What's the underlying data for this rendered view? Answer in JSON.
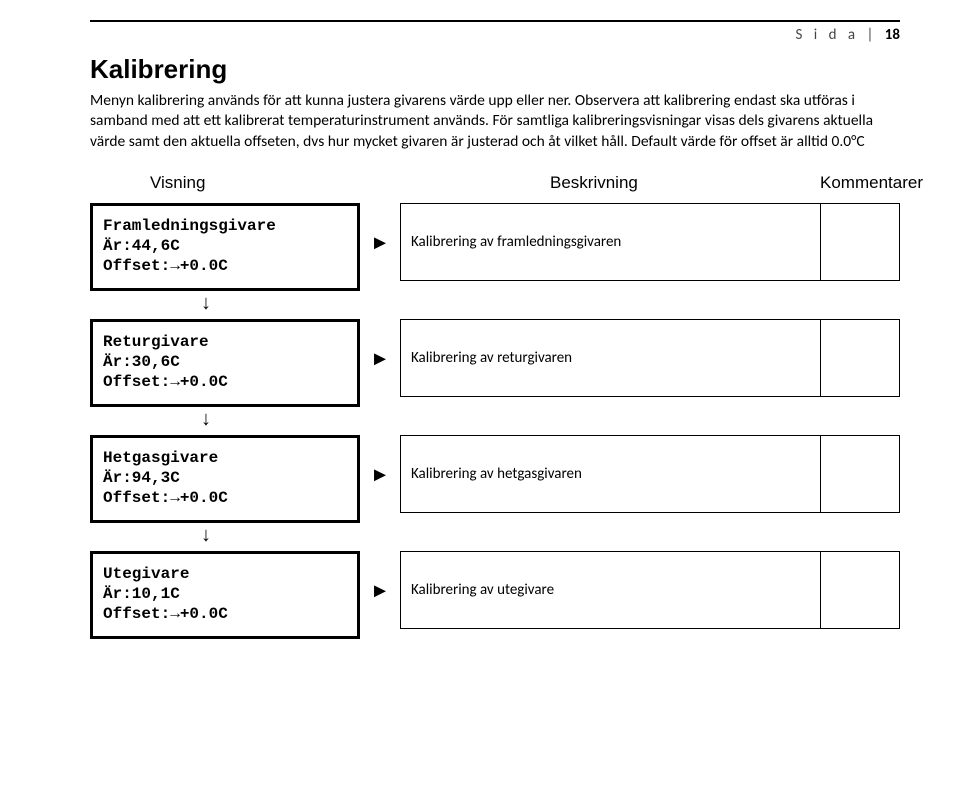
{
  "page_header": {
    "prefix": "S i d a  | ",
    "number": "18"
  },
  "title": "Kalibrering",
  "intro": "Menyn kalibrering används för att kunna justera givarens värde upp eller ner. Observera att kalibrering endast ska utföras i samband med att ett kalibrerat temperaturinstrument används. För samtliga kalibreringsvisningar visas dels givarens aktuella värde samt den aktuella offseten, dvs hur mycket givaren är justerad och åt vilket håll. Default värde för offset är alltid 0.0°C",
  "columns": {
    "c1": "Visning",
    "c3": "Beskrivning",
    "c4": "Kommentarer"
  },
  "arrows": {
    "right": "►",
    "down": "↓"
  },
  "rows": [
    {
      "line1": "Framledningsgivare",
      "line2": "Är:44,6C",
      "line3": "Offset:→+0.0C",
      "desc": "Kalibrering av framledningsgivaren"
    },
    {
      "line1": "Returgivare",
      "line2": "Är:30,6C",
      "line3": "Offset:→+0.0C",
      "desc": "Kalibrering av returgivaren"
    },
    {
      "line1": "Hetgasgivare",
      "line2": "Är:94,3C",
      "line3": "Offset:→+0.0C",
      "desc": "Kalibrering av hetgasgivaren"
    },
    {
      "line1": "Utegivare",
      "line2": "Är:10,1C",
      "line3": "Offset:→+0.0C",
      "desc": "Kalibrering av utegivare"
    }
  ]
}
